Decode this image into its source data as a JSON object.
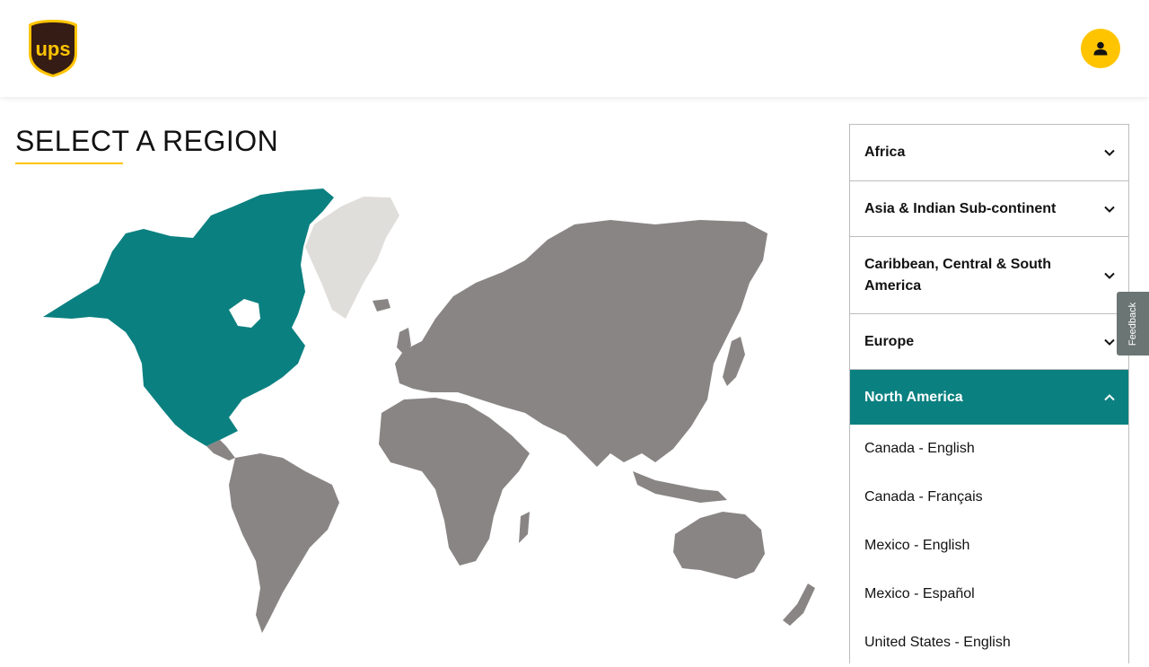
{
  "header": {
    "logo_text": "ups",
    "profile_icon": "user-icon"
  },
  "page": {
    "title": "SELECT A REGION"
  },
  "colors": {
    "brand_yellow": "#ffc400",
    "brand_brown": "#351c15",
    "highlight_teal": "#0b8080",
    "land_gray": "#8a8585",
    "greenland_light": "#e0dedb"
  },
  "map": {
    "highlighted_region": "North America"
  },
  "regions": [
    {
      "label": "Africa",
      "expanded": false
    },
    {
      "label": "Asia & Indian Sub-continent",
      "expanded": false
    },
    {
      "label": "Caribbean, Central & South America",
      "expanded": false
    },
    {
      "label": "Europe",
      "expanded": false
    },
    {
      "label": "North America",
      "expanded": true
    }
  ],
  "north_america_locales": [
    "Canada - English",
    "Canada - Français",
    "Mexico - English",
    "Mexico - Español",
    "United States - English"
  ],
  "feedback": {
    "label": "Feedback"
  }
}
